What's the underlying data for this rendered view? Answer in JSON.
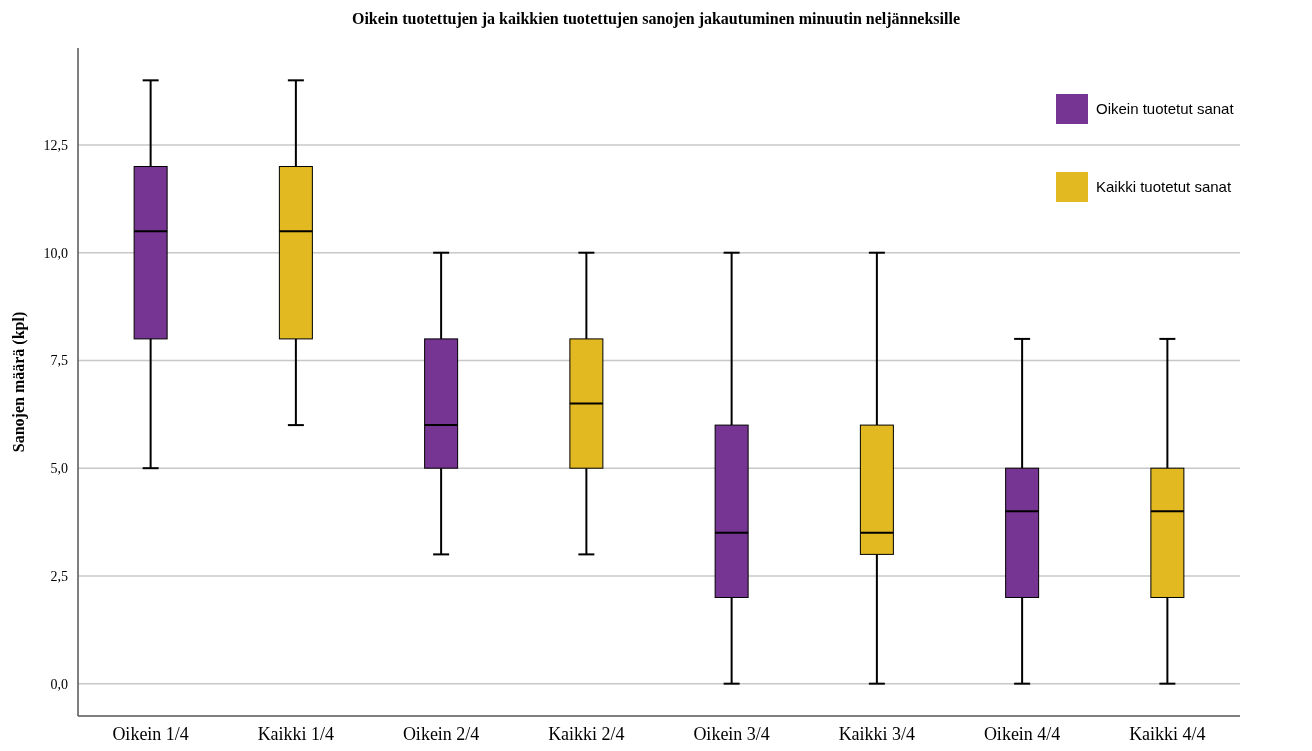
{
  "chart_data": {
    "type": "box",
    "title": "Oikein tuotettujen ja kaikkien tuotettujen sanojen jakautuminen minuutin neljänneksille",
    "ylabel": "Sanojen määrä (kpl)",
    "categories": [
      "Oikein 1/4",
      "Kaikki 1/4",
      "Oikein 2/4",
      "Kaikki 2/4",
      "Oikein 3/4",
      "Kaikki 3/4",
      "Oikein 4/4",
      "Kaikki 4/4"
    ],
    "series": [
      {
        "name": "Oikein tuotetut sanat",
        "color": "#763592",
        "boxes": [
          {
            "low": 5,
            "q1": 8,
            "median": 10.5,
            "q3": 12,
            "high": 14
          },
          null,
          {
            "low": 3,
            "q1": 5,
            "median": 6,
            "q3": 8,
            "high": 10
          },
          null,
          {
            "low": 0,
            "q1": 2,
            "median": 3.5,
            "q3": 6,
            "high": 10
          },
          null,
          {
            "low": 0,
            "q1": 2,
            "median": 4,
            "q3": 5,
            "high": 8
          },
          null
        ]
      },
      {
        "name": "Kaikki tuotetut sanat",
        "color": "#e2b920",
        "boxes": [
          null,
          {
            "low": 6,
            "q1": 8,
            "median": 10.5,
            "q3": 12,
            "high": 14
          },
          null,
          {
            "low": 3,
            "q1": 5,
            "median": 6.5,
            "q3": 8,
            "high": 10
          },
          null,
          {
            "low": 0,
            "q1": 3,
            "median": 3.5,
            "q3": 6,
            "high": 10
          },
          null,
          {
            "low": 0,
            "q1": 2,
            "median": 4,
            "q3": 5,
            "high": 8
          }
        ]
      }
    ],
    "ylim": [
      -0.75,
      14.75
    ],
    "yticks": [
      {
        "value": 0,
        "label": "0,0"
      },
      {
        "value": 2.5,
        "label": "2,5"
      },
      {
        "value": 5,
        "label": "5,0"
      },
      {
        "value": 7.5,
        "label": "7,5"
      },
      {
        "value": 10,
        "label": "10,0"
      },
      {
        "value": 12.5,
        "label": "12,5"
      }
    ],
    "grid": "y",
    "legend": "top right"
  }
}
